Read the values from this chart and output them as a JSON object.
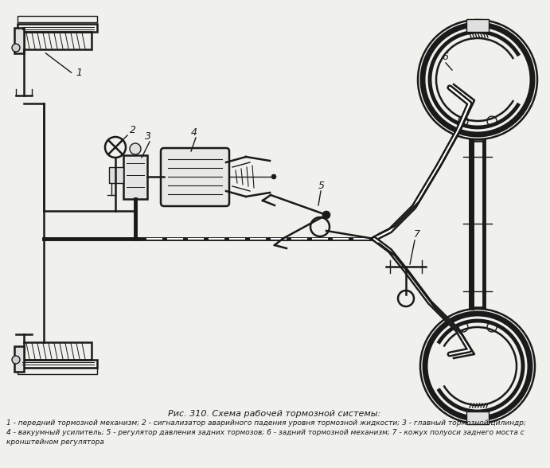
{
  "title": "Рис. 310. Схема рабочей тормозной системы:",
  "caption_line1": "1 - передний тормозной механизм; 2 - сигнализатор аварийного падения уровня тормозной жидкости; 3 - главный тормозной цилиндр;",
  "caption_line2": "4 - вакуумный усилитель; 5 - регулятор давления задних тормозов; 6 - задний тормозной механизм; 7 - кожух полуоси заднего моста с",
  "caption_line3": "кронштейном регулятора",
  "bg_color": "#f0f0ec",
  "line_color": "#1a1a1a",
  "fig_width": 6.91,
  "fig_height": 5.88,
  "dpi": 100
}
